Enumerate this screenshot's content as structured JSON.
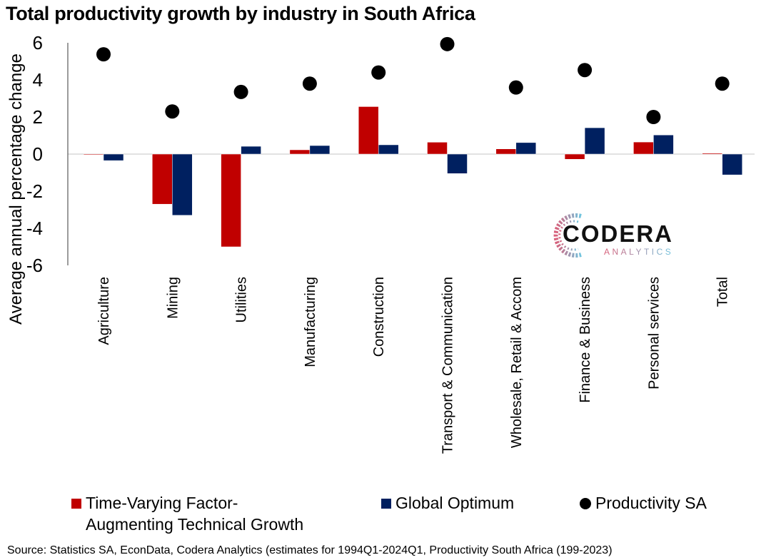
{
  "chart_data": {
    "type": "bar",
    "title": "Total productivity growth by industry in South Africa",
    "xlabel": "",
    "ylabel": "Average annual percentage change",
    "ylim": [
      -6,
      6
    ],
    "yticks": [
      6,
      4,
      2,
      0,
      -2,
      -4,
      -6
    ],
    "grid": false,
    "legend_position": "bottom",
    "categories": [
      "Agriculture",
      "Mining",
      "Utilities",
      "Manufacturing",
      "Construction",
      "Transport & Communication",
      "Wholesale, Retail & Accom",
      "Finance & Business",
      "Personal services",
      "Total"
    ],
    "series": [
      {
        "name": "Time-Varying Factor-Augmenting Technical Growth",
        "type": "bar",
        "color": "#c00000",
        "values": [
          -0.02,
          -2.7,
          -5.0,
          0.23,
          2.56,
          0.64,
          0.28,
          -0.28,
          0.65,
          0.05
        ]
      },
      {
        "name": "Global Optimum",
        "type": "bar",
        "color": "#002060",
        "values": [
          -0.35,
          -3.3,
          0.42,
          0.46,
          0.5,
          -1.05,
          0.62,
          1.42,
          1.03,
          -1.12
        ]
      },
      {
        "name": "Productivity SA",
        "type": "scatter",
        "color": "#000000",
        "values": [
          5.38,
          2.3,
          3.35,
          3.8,
          4.4,
          5.93,
          3.59,
          4.53,
          2.0,
          3.8
        ]
      }
    ]
  },
  "legend": {
    "item1_line1": "Time-Varying Factor-",
    "item1_line2": "Augmenting Technical Growth",
    "item2": "Global Optimum",
    "item3": "Productivity SA"
  },
  "logo": {
    "name": "CODERA",
    "sub": "ANALYTICS"
  },
  "source": "Source: Statistics SA, EconData, Codera Analytics (estimates for 1994Q1-2024Q1, Productivity South Africa (199-2023)"
}
